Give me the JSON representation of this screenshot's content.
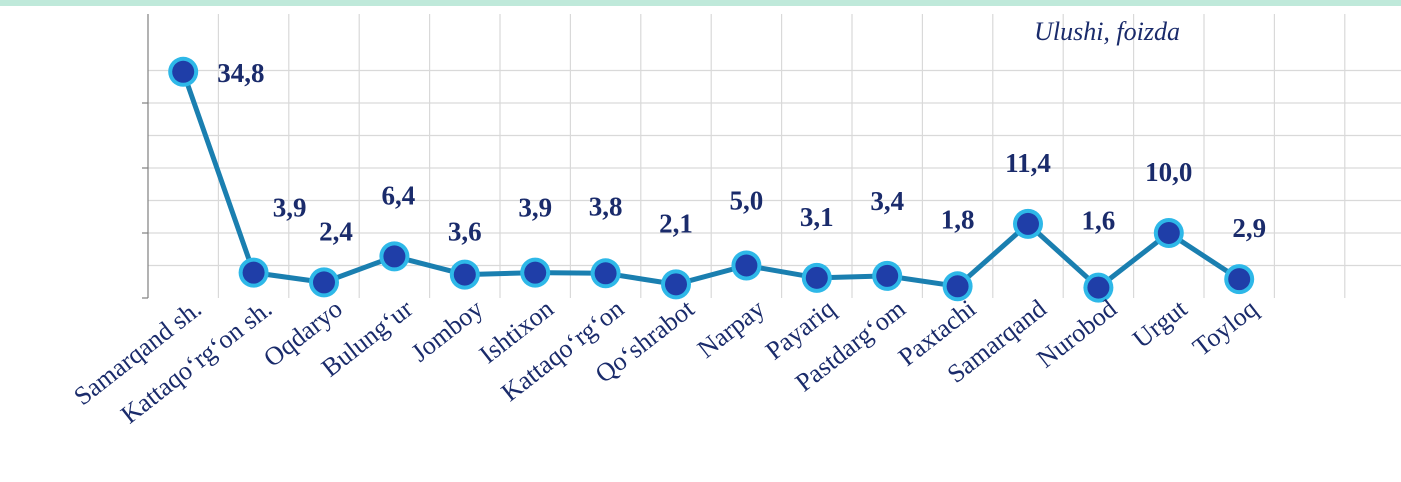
{
  "chart_data": {
    "type": "line",
    "title": "",
    "xlabel": "",
    "ylabel": "Ulushi, foizda",
    "categories": [
      "Samarqand sh.",
      "Kattaqo‘rg‘on sh.",
      "Oqdaryo",
      "Bulung‘ur",
      "Jomboy",
      "Ishtixon",
      "Kattaqo‘rg‘on",
      "Qo‘shrabot",
      "Narpay",
      "Payariq",
      "Pastdarg‘om",
      "Paxtachi",
      "Samarqand",
      "Nurobod",
      "Urgut",
      "Toyloq"
    ],
    "labels": [
      "34,8",
      "3,9",
      "2,4",
      "6,4",
      "3,6",
      "3,9",
      "3,8",
      "2,1",
      "5,0",
      "3,1",
      "3,4",
      "1,8",
      "11,4",
      "1,6",
      "10,0",
      "2,9"
    ],
    "values": [
      34.8,
      3.9,
      2.4,
      6.4,
      3.6,
      3.9,
      3.8,
      2.1,
      5.0,
      3.1,
      3.4,
      1.8,
      11.4,
      1.6,
      10.0,
      2.9
    ],
    "ylim": [
      0,
      40
    ],
    "grid": true,
    "legend": "none",
    "colors": {
      "line": "#1a7fb0",
      "point_outer": "#2eb8e8",
      "point_inner": "#1f3ea8",
      "text": "#1a2b6b",
      "band": "#bfe9da"
    }
  }
}
